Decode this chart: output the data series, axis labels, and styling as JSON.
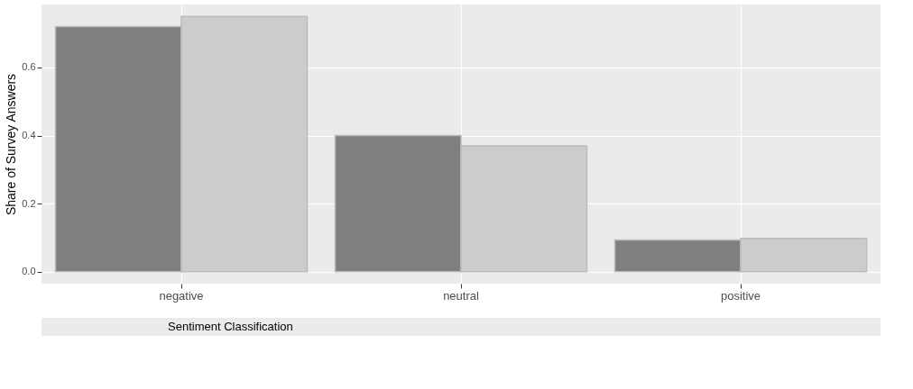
{
  "chart_data": {
    "type": "bar",
    "ylabel": "Share of Survey Answers",
    "annotations": [
      "Sentiment Classification"
    ],
    "categories": [
      "negative",
      "neutral",
      "positive"
    ],
    "series": [
      {
        "color": "#7f7f7f",
        "values": [
          0.72,
          0.4,
          0.093
        ]
      },
      {
        "color": "#cccccc",
        "values": [
          0.75,
          0.37,
          0.098
        ]
      }
    ],
    "ylim": [
      -0.035,
      0.785
    ],
    "yticks": [
      {
        "value": 0,
        "label": "0.0"
      },
      {
        "value": 0.2,
        "label": "0.2"
      },
      {
        "value": 0.4,
        "label": "0.4"
      },
      {
        "value": 0.6,
        "label": "0.6"
      }
    ],
    "grid": true
  }
}
